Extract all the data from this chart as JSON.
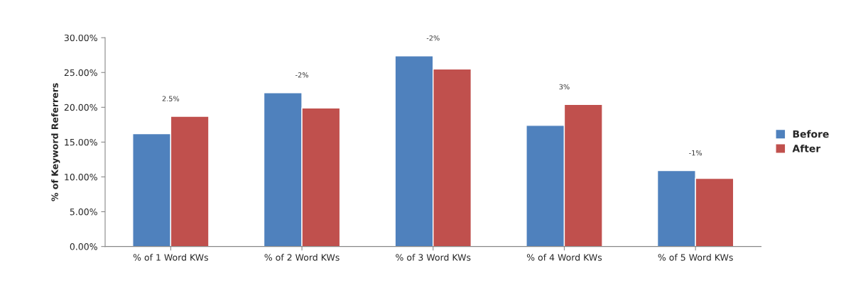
{
  "chart_data": {
    "type": "bar",
    "ylabel": "% of Keyword Referrers",
    "categories": [
      "% of 1 Word KWs",
      "% of 2 Word KWs",
      "% of 3 Word KWs",
      "% of 4 Word KWs",
      "% of 5 Word KWs"
    ],
    "series": [
      {
        "name": "Before",
        "color": "#4f81bd",
        "values": [
          16.2,
          22.1,
          27.4,
          17.4,
          10.9
        ]
      },
      {
        "name": "After",
        "color": "#c0504d",
        "values": [
          18.7,
          19.9,
          25.5,
          20.4,
          9.8
        ]
      }
    ],
    "ylim": [
      0,
      30
    ],
    "yticks": [
      {
        "value": 0,
        "label": "0.00%"
      },
      {
        "value": 5,
        "label": "5.00%"
      },
      {
        "value": 10,
        "label": "10.00%"
      },
      {
        "value": 15,
        "label": "15.00%"
      },
      {
        "value": 20,
        "label": "20.00%"
      },
      {
        "value": 25,
        "label": "25.00%"
      },
      {
        "value": 30,
        "label": "30.00%"
      }
    ],
    "annotations": [
      "2.5%",
      "-2%",
      "-2%",
      "3%",
      "-1%"
    ],
    "grid": false,
    "legend": "right"
  }
}
